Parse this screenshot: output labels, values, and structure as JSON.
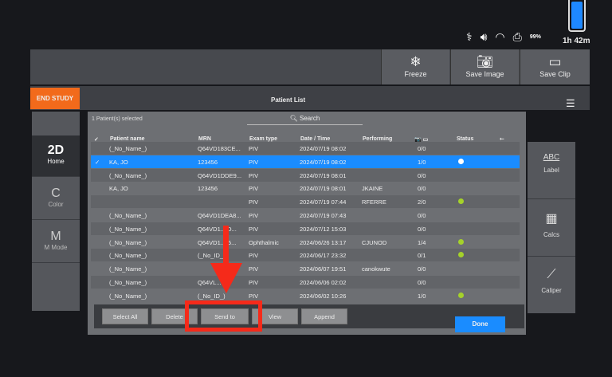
{
  "status_bar": {
    "battery_percent": 99,
    "battery_label": "99%",
    "time_remaining": "1h 42m",
    "icons": [
      "stethoscope-icon",
      "volume-icon",
      "wifi-icon",
      "printer-icon",
      "battery-icon"
    ]
  },
  "toolbar": {
    "freeze": "Freeze",
    "save_image": "Save Image",
    "save_clip": "Save Clip"
  },
  "header": {
    "end_study": "END STUDY",
    "title": "Patient List"
  },
  "left_sidebar": [
    {
      "abbr": "2D",
      "label": "Home"
    },
    {
      "abbr": "C",
      "label": "Color"
    },
    {
      "abbr": "M",
      "label": "M Mode"
    }
  ],
  "right_sidebar": [
    {
      "icon": "ABC",
      "label": "Label"
    },
    {
      "icon": "calculator-icon",
      "label": "Calcs"
    },
    {
      "icon": "caliper-icon",
      "label": "Caliper"
    }
  ],
  "list": {
    "selected_count": "1 Patient(s) selected",
    "search_placeholder": "Search",
    "columns": {
      "check": "✓",
      "name": "Patient name",
      "mrn": "MRN",
      "exam": "Exam type",
      "date": "Date / Time",
      "performing": "Performing",
      "media": "📷 ▭",
      "status": "Status",
      "usb": "⭠"
    },
    "rows": [
      {
        "name": "(_No_Name_)",
        "mrn": "Q64VD183CE...",
        "exam": "PIV",
        "date": "2024/07/19  08:02",
        "performing": "",
        "media": "0/0",
        "status": ""
      },
      {
        "selected": true,
        "name": "KA, JO",
        "mrn": "123456",
        "exam": "PIV",
        "date": "2024/07/19  08:02",
        "performing": "",
        "media": "1/0",
        "status": "white"
      },
      {
        "name": "(_No_Name_)",
        "mrn": "Q64VD1DDE9...",
        "exam": "PIV",
        "date": "2024/07/19  08:01",
        "performing": "",
        "media": "0/0",
        "status": ""
      },
      {
        "name": "KA, JO",
        "mrn": "123456",
        "exam": "PIV",
        "date": "2024/07/19  08:01",
        "performing": "JKAINE",
        "media": "0/0",
        "status": ""
      },
      {
        "name": "",
        "mrn": "",
        "exam": "PIV",
        "date": "2024/07/19  07:44",
        "performing": "RFERRE",
        "media": "2/0",
        "status": "green"
      },
      {
        "name": "(_No_Name_)",
        "mrn": "Q64VD1DEA8...",
        "exam": "PIV",
        "date": "2024/07/19  07:43",
        "performing": "",
        "media": "0/0",
        "status": ""
      },
      {
        "name": "(_No_Name_)",
        "mrn": "Q64VD1..3D...",
        "exam": "PIV",
        "date": "2024/07/12  15:03",
        "performing": "",
        "media": "0/0",
        "status": ""
      },
      {
        "name": "(_No_Name_)",
        "mrn": "Q64VD1..B5...",
        "exam": "Ophthalmic",
        "date": "2024/06/26  13:17",
        "performing": "CJUNOD",
        "media": "1/4",
        "status": "green"
      },
      {
        "name": "(_No_Name_)",
        "mrn": "(_No_ID_)",
        "exam": "PIV",
        "date": "2024/06/17  23:32",
        "performing": "",
        "media": "0/1",
        "status": "green"
      },
      {
        "name": "(_No_Name_)",
        "mrn": "",
        "exam": "PIV",
        "date": "2024/06/07  19:51",
        "performing": "canokwute",
        "media": "0/0",
        "status": ""
      },
      {
        "name": "(_No_Name_)",
        "mrn": "Q64VL...2...",
        "exam": "PIV",
        "date": "2024/06/06  02:02",
        "performing": "",
        "media": "0/0",
        "status": ""
      },
      {
        "name": "(_No_Name_)",
        "mrn": "(_No_ID_)",
        "exam": "PIV",
        "date": "2024/06/02  10:26",
        "performing": "",
        "media": "1/0",
        "status": "green"
      }
    ]
  },
  "actions": {
    "select_all": "Select All",
    "delete": "Delete",
    "send_to": "Send to",
    "view": "View",
    "append": "Append",
    "done": "Done"
  },
  "colors": {
    "accent": "#1a8cff",
    "end_study": "#f26a1b",
    "annotation": "#f52a1a",
    "status_green": "#a5d22a"
  }
}
